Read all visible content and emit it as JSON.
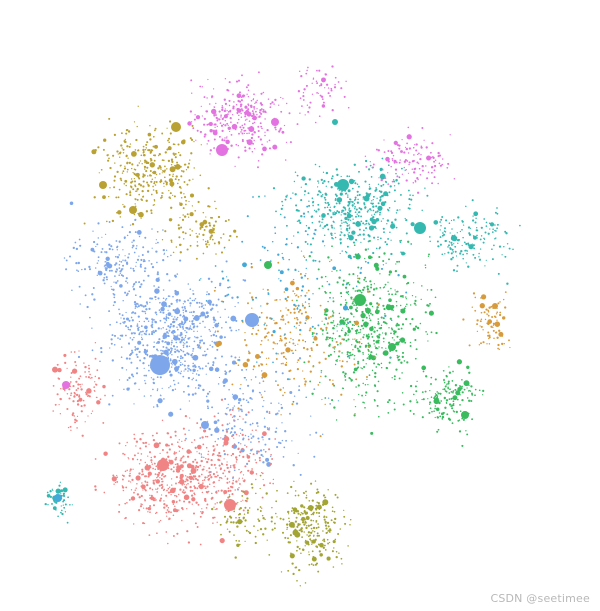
{
  "watermark": "CSDN @seetimee",
  "graph": {
    "type": "network",
    "communities": [
      {
        "color": "#7ea6ea"
      },
      {
        "color": "#f08484"
      },
      {
        "color": "#a2a533"
      },
      {
        "color": "#39bb5e"
      },
      {
        "color": "#35b8b0"
      },
      {
        "color": "#e373e0"
      },
      {
        "color": "#b9a233"
      },
      {
        "color": "#d79b3c"
      },
      {
        "color": "#42a9d8"
      }
    ]
  }
}
